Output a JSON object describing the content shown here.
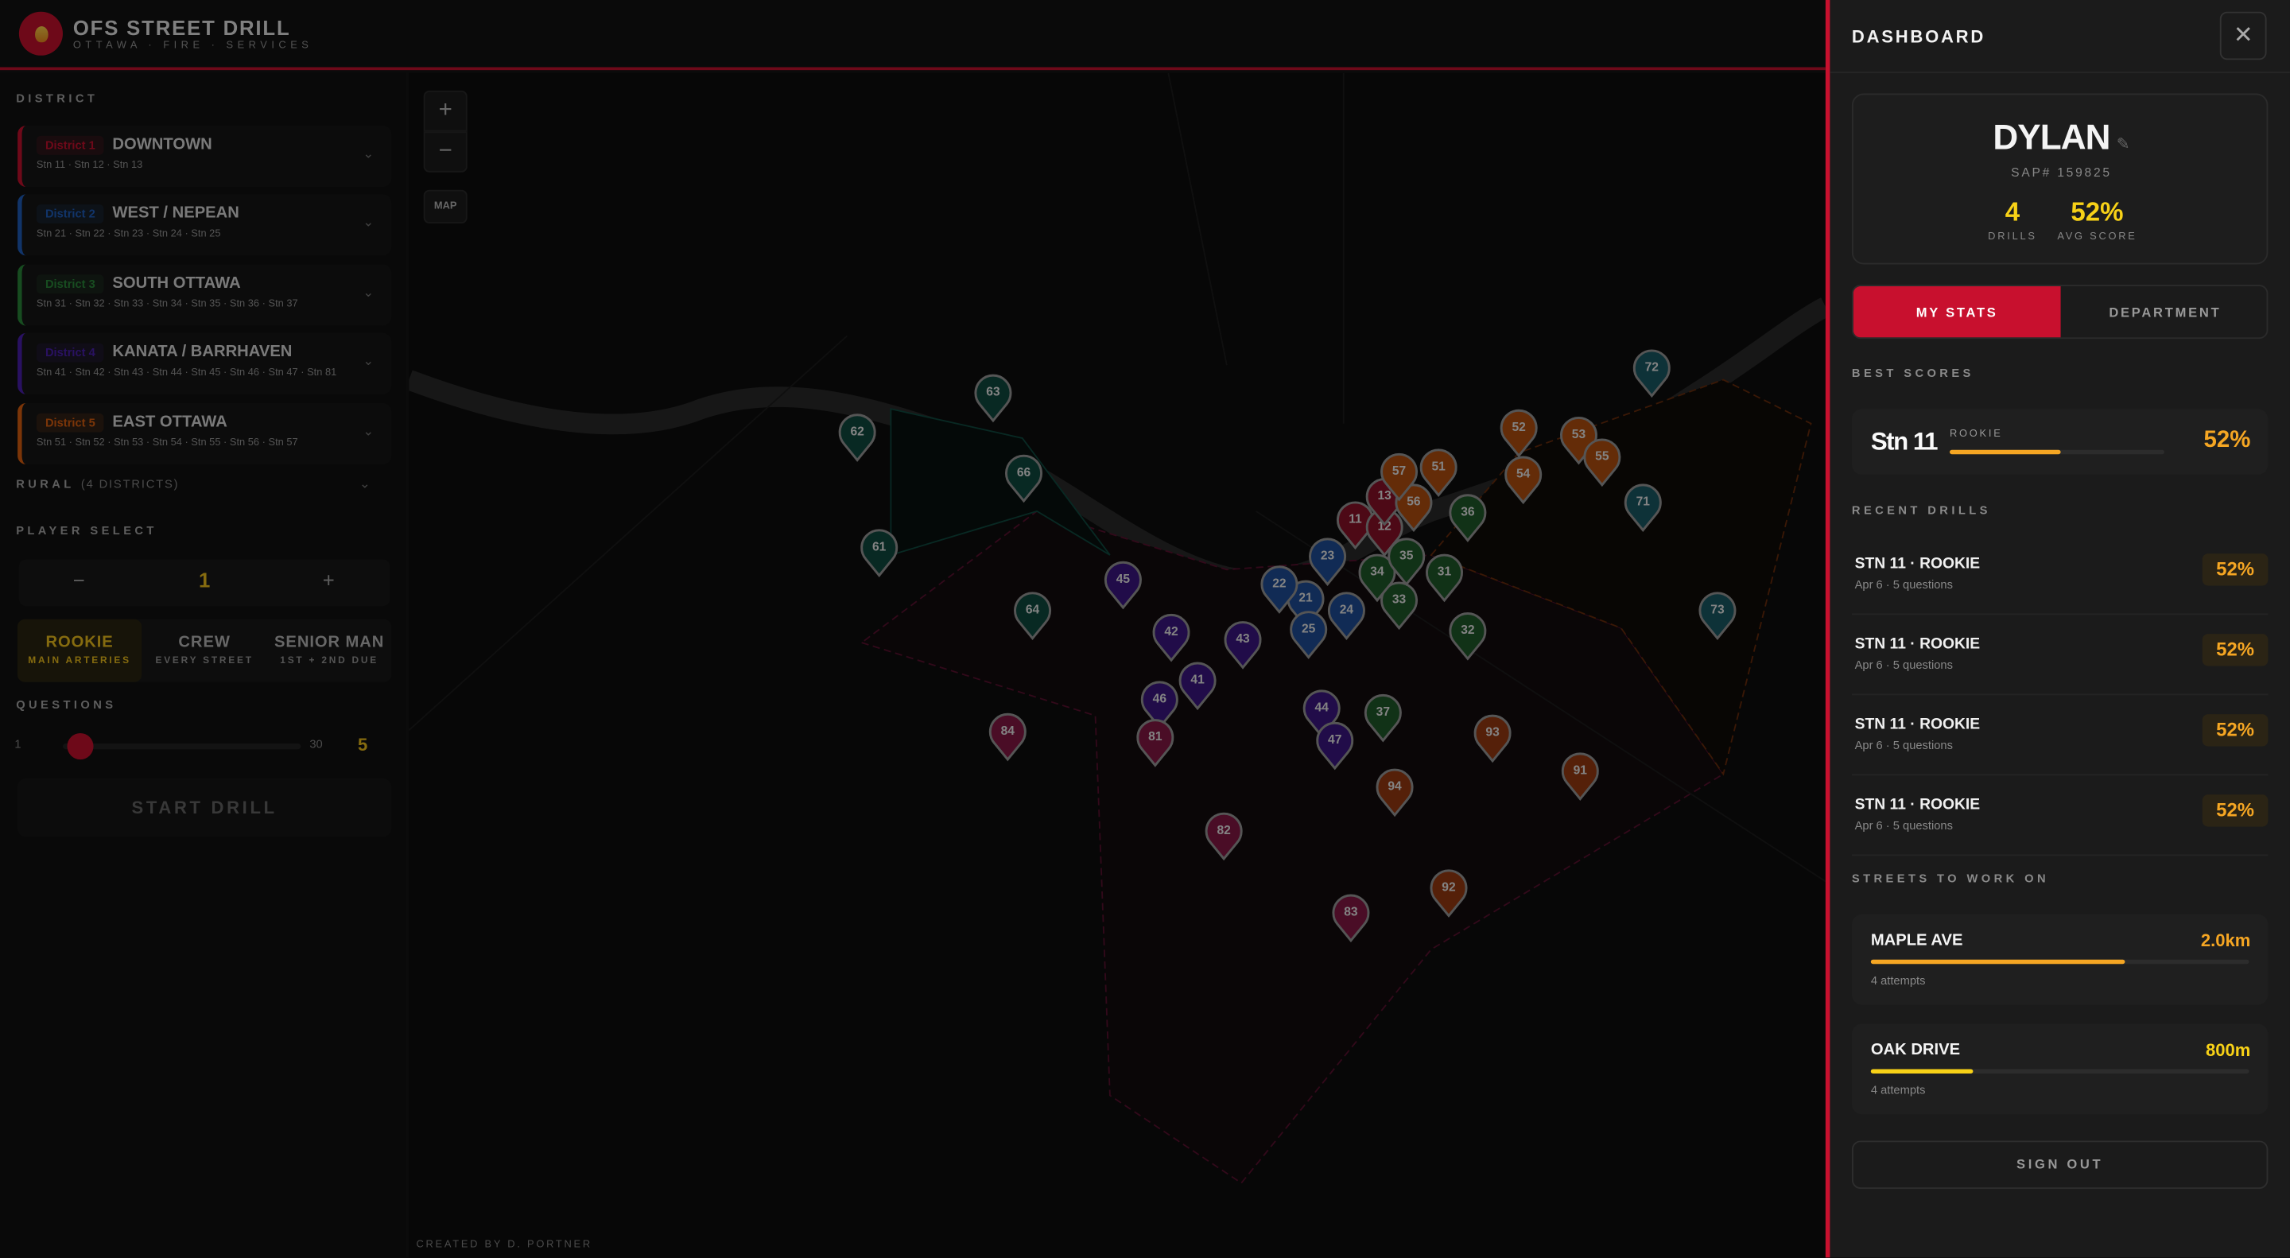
{
  "header": {
    "title": "OFS STREET DRILL",
    "subtitle": "OTTAWA · FIRE · SERVICES"
  },
  "left": {
    "district_label": "DISTRICT",
    "districts": [
      {
        "tag": "District 1",
        "name": "DOWNTOWN",
        "stations": "Stn 11 · Stn 12 · Stn 13",
        "color": "#c8102e"
      },
      {
        "tag": "District 2",
        "name": "WEST / NEPEAN",
        "stations": "Stn 21 · Stn 22 · Stn 23 · Stn 24 · Stn 25",
        "color": "#1f5fbf"
      },
      {
        "tag": "District 3",
        "name": "SOUTH OTTAWA",
        "stations": "Stn 31 · Stn 32 · Stn 33 · Stn 34 · Stn 35 · Stn 36 · Stn 37",
        "color": "#2a8a3a"
      },
      {
        "tag": "District 4",
        "name": "KANATA / BARRHAVEN",
        "stations": "Stn 41 · Stn 42 · Stn 43 · Stn 44 · Stn 45 · Stn 46 · Stn 47 · Stn 81",
        "color": "#4a1fb0"
      },
      {
        "tag": "District 5",
        "name": "EAST OTTAWA",
        "stations": "Stn 51 · Stn 52 · Stn 53 · Stn 54 · Stn 55 · Stn 56 · Stn 57",
        "color": "#e0600f"
      }
    ],
    "rural_label": "RURAL",
    "rural_count": "(4 DISTRICTS)",
    "player_label": "PLAYER SELECT",
    "player_minus": "−",
    "player_count": "1",
    "player_plus": "+",
    "difficulty": [
      {
        "title": "ROOKIE",
        "sub": "MAIN ARTERIES",
        "selected": true
      },
      {
        "title": "CREW",
        "sub": "EVERY STREET",
        "selected": false
      },
      {
        "title": "SENIOR MAN",
        "sub": "1ST + 2ND DUE",
        "selected": false
      }
    ],
    "questions_label": "QUESTIONS",
    "q_min": "1",
    "q_max": "30",
    "q_value": "5",
    "start_label": "START DRILL"
  },
  "map": {
    "zoom_in": "+",
    "zoom_out": "−",
    "map_toggle": "MAP",
    "credit": "CREATED BY D. PORTNER",
    "station_colors": {
      "1": "#8c1028",
      "2": "#1f4f9a",
      "3": "#1f5a2a",
      "4": "#3c1685",
      "5": "#b5500f",
      "6": "#0f4a40",
      "7": "#1a5a66",
      "8": "#861846",
      "9": "#9a3a10"
    },
    "stations": [
      "11",
      "12",
      "13",
      "21",
      "22",
      "23",
      "24",
      "25",
      "31",
      "32",
      "33",
      "34",
      "35",
      "36",
      "37",
      "41",
      "42",
      "43",
      "44",
      "45",
      "46",
      "47",
      "51",
      "52",
      "53",
      "54",
      "55",
      "56",
      "57",
      "61",
      "62",
      "63",
      "64",
      "66",
      "71",
      "72",
      "73",
      "81",
      "82",
      "83",
      "84",
      "91",
      "92",
      "93",
      "94"
    ]
  },
  "dashboard": {
    "title": "DASHBOARD",
    "close": "✕",
    "user": {
      "name": "DYLAN",
      "sap": "SAP# 159825",
      "drills": "4",
      "drills_label": "DRILLS",
      "avg": "52%",
      "avg_label": "AVG SCORE"
    },
    "tabs": [
      {
        "label": "MY STATS",
        "active": true
      },
      {
        "label": "DEPARTMENT",
        "active": false
      }
    ],
    "best_label": "BEST SCORES",
    "best": {
      "station": "Stn 11",
      "level": "ROOKIE",
      "score": "52%",
      "progress": 52
    },
    "recent_label": "RECENT DRILLS",
    "recent": [
      {
        "title": "STN 11 · ROOKIE",
        "sub": "Apr 6 · 5 questions",
        "score": "52%"
      },
      {
        "title": "STN 11 · ROOKIE",
        "sub": "Apr 6 · 5 questions",
        "score": "52%"
      },
      {
        "title": "STN 11 · ROOKIE",
        "sub": "Apr 6 · 5 questions",
        "score": "52%"
      },
      {
        "title": "STN 11 · ROOKIE",
        "sub": "Apr 6 · 5 questions",
        "score": "52%"
      }
    ],
    "streets_label": "STREETS TO WORK ON",
    "streets": [
      {
        "name": "MAPLE AVE",
        "distance": "2.0km",
        "attempts": "4 attempts",
        "progress": 67,
        "color": "#f5a623"
      },
      {
        "name": "OAK DRIVE",
        "distance": "800m",
        "attempts": "4 attempts",
        "progress": 27,
        "color": "#f7d117"
      }
    ],
    "sign_out": "SIGN OUT"
  }
}
